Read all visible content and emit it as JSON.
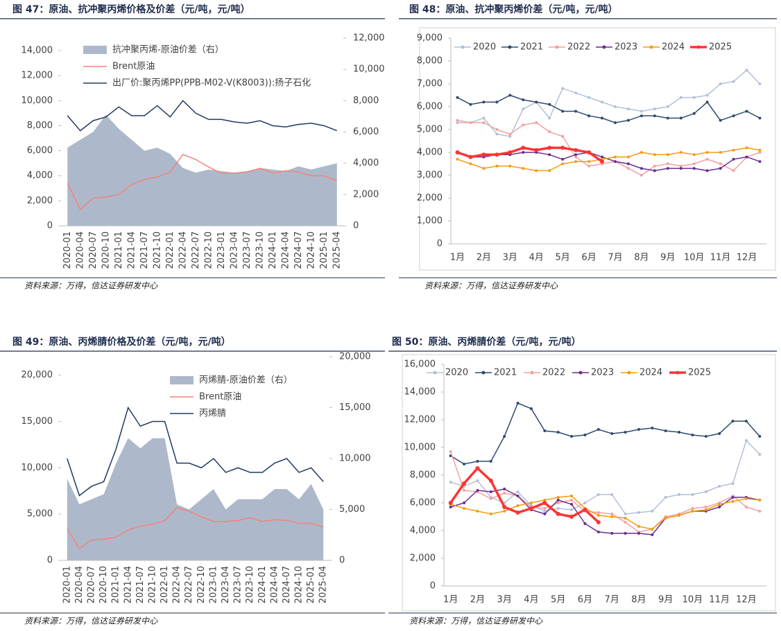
{
  "chart_data": [
    {
      "type": "line",
      "title": "图 47：原油、抗冲聚丙烯价格及价差（元/吨，元/吨）",
      "note": "资料来源：万得，信达证券研发中心",
      "categories": [
        "2020-01",
        "2020-04",
        "2020-07",
        "2020-10",
        "2021-01",
        "2021-04",
        "2021-07",
        "2021-10",
        "2022-01",
        "2022-04",
        "2022-07",
        "2022-10",
        "2023-01",
        "2023-04",
        "2023-07",
        "2023-10",
        "2024-01",
        "2024-04",
        "2024-07",
        "2024-10",
        "2025-01",
        "2025-04"
      ],
      "ylim": [
        0,
        15000
      ],
      "yticks": [
        0,
        {
          "value": 2000,
          "label": "2,000"
        },
        {
          "value": 4000,
          "label": "4,000"
        },
        {
          "value": 6000,
          "label": "6,000"
        },
        {
          "value": 8000,
          "label": "8,000"
        },
        {
          "value": 10000,
          "label": "10,000"
        },
        {
          "value": 12000,
          "label": "12,000"
        },
        {
          "value": 14000,
          "label": "14,000"
        }
      ],
      "y2lim": [
        0,
        12000
      ],
      "y2ticks": [
        0,
        {
          "value": 2000,
          "label": "2,000"
        },
        {
          "value": 4000,
          "label": "4,000"
        },
        {
          "value": 6000,
          "label": "6,000"
        },
        {
          "value": 8000,
          "label": "8,000"
        },
        {
          "value": 10000,
          "label": "10,000"
        },
        {
          "value": 12000,
          "label": "12,000"
        }
      ],
      "grid": false,
      "series": [
        {
          "name": "抗冲聚丙烯-原油价差（右）",
          "type": "area",
          "axis": "y2",
          "color": "#adb9ca",
          "values": [
            5000,
            5500,
            6000,
            7100,
            6200,
            5500,
            4800,
            5000,
            4600,
            3700,
            3400,
            3600,
            3500,
            3400,
            3500,
            3700,
            3600,
            3500,
            3800,
            3600,
            3800,
            4000
          ]
        },
        {
          "name": "Brent原油",
          "color": "#f4817b",
          "values": [
            3400,
            1300,
            2200,
            2300,
            2500,
            3300,
            3700,
            3900,
            4300,
            5700,
            5300,
            4700,
            4200,
            4200,
            4300,
            4600,
            4200,
            4400,
            4300,
            4000,
            4000,
            3600
          ]
        },
        {
          "name": "出厂价:聚丙烯PP(PPB-M02-V(K8003)):扬子石化",
          "color": "#1f3864",
          "values": [
            8800,
            7600,
            8400,
            8700,
            9500,
            8800,
            8800,
            9600,
            8700,
            10000,
            9000,
            8500,
            8500,
            8300,
            8200,
            8400,
            8000,
            7900,
            8100,
            8200,
            8000,
            7600
          ]
        }
      ]
    },
    {
      "type": "line",
      "title": "图 48：原油、抗冲聚丙烯价差（元/吨，元/吨）",
      "note": "资料来源：万得，信达证券研发中心",
      "categories": [
        "1月",
        null,
        "2月",
        null,
        "3月",
        null,
        "4月",
        null,
        "5月",
        null,
        "6月",
        null,
        "7月",
        null,
        "8月",
        null,
        "9月",
        null,
        "10月",
        null,
        "11月",
        null,
        "12月",
        null
      ],
      "ylim": [
        0,
        9000
      ],
      "yticks": [
        0,
        {
          "value": 1000,
          "label": "1,000"
        },
        {
          "value": 2000,
          "label": "2,000"
        },
        {
          "value": 3000,
          "label": "3,000"
        },
        {
          "value": 4000,
          "label": "4,000"
        },
        {
          "value": 5000,
          "label": "5,000"
        },
        {
          "value": 6000,
          "label": "6,000"
        },
        {
          "value": 7000,
          "label": "7,000"
        },
        {
          "value": 8000,
          "label": "8,000"
        },
        {
          "value": 9000,
          "label": "9,000"
        }
      ],
      "grid": false,
      "markers": true,
      "series": [
        {
          "name": "2020",
          "color": "#b4c0d4",
          "values": [
            5300,
            5300,
            5500,
            4800,
            4700,
            5900,
            6200,
            5500,
            6800,
            6600,
            6400,
            6200,
            6000,
            5900,
            5800,
            5900,
            6000,
            6400,
            6400,
            6500,
            7000,
            7100,
            7600,
            7000
          ]
        },
        {
          "name": "2021",
          "color": "#2e4a6e",
          "values": [
            6400,
            6100,
            6200,
            6200,
            6500,
            6300,
            6200,
            6100,
            5800,
            5800,
            5600,
            5500,
            5300,
            5400,
            5600,
            5600,
            5500,
            5500,
            5700,
            6200,
            5400,
            5600,
            5800,
            5500
          ]
        },
        {
          "name": "2022",
          "color": "#f4a0a0",
          "values": [
            5400,
            5300,
            5300,
            5000,
            4800,
            5200,
            5300,
            4900,
            4700,
            3800,
            3400,
            3500,
            3600,
            3300,
            3000,
            3400,
            3500,
            3400,
            3500,
            3700,
            3500,
            3200,
            3800,
            4000
          ]
        },
        {
          "name": "2023",
          "color": "#6a2c91",
          "values": [
            4000,
            3800,
            3800,
            3900,
            3900,
            4000,
            4000,
            3900,
            3700,
            3900,
            4000,
            3800,
            3600,
            3500,
            3300,
            3200,
            3300,
            3300,
            3300,
            3200,
            3300,
            3700,
            3800,
            3600
          ]
        },
        {
          "name": "2024",
          "color": "#f39c12",
          "values": [
            3700,
            3500,
            3300,
            3400,
            3400,
            3300,
            3200,
            3200,
            3500,
            3600,
            3600,
            3700,
            3800,
            3800,
            4000,
            3900,
            3900,
            4000,
            3900,
            4000,
            4000,
            4100,
            4200,
            4100
          ]
        },
        {
          "name": "2025",
          "color": "#ff3333",
          "values": [
            4000,
            3800,
            3900,
            3900,
            4000,
            4200,
            4100,
            4200,
            4200,
            4100,
            4000,
            3600,
            null,
            null,
            null,
            null,
            null,
            null,
            null,
            null,
            null,
            null,
            null,
            null
          ]
        }
      ]
    },
    {
      "type": "line",
      "title": "图 49：原油、丙烯腈价格及价差（元/吨，元/吨）",
      "note": "资料来源：万得，信达证券研发中心",
      "categories": [
        "2020-01",
        "2020-04",
        "2020-07",
        "2020-10",
        "2021-01",
        "2021-04",
        "2021-07",
        "2021-10",
        "2022-01",
        "2022-04",
        "2022-07",
        "2022-10",
        "2023-01",
        "2023-04",
        "2023-07",
        "2023-10",
        "2024-01",
        "2024-04",
        "2024-07",
        "2024-10",
        "2025-01",
        "2025-04"
      ],
      "ylim": [
        0,
        22000
      ],
      "yticks": [
        0,
        {
          "value": 5000,
          "label": "5,000"
        },
        {
          "value": 10000,
          "label": "10,000"
        },
        {
          "value": 15000,
          "label": "15,000"
        },
        {
          "value": 20000,
          "label": "20,000"
        }
      ],
      "y2lim": [
        0,
        20000
      ],
      "y2ticks": [
        0,
        {
          "value": 5000,
          "label": "5,000"
        },
        {
          "value": 10000,
          "label": "10,000"
        },
        {
          "value": 15000,
          "label": "15,000"
        },
        {
          "value": 20000,
          "label": "20,000"
        }
      ],
      "grid": false,
      "series": [
        {
          "name": "丙烯腈-原油价差（右）",
          "type": "area",
          "axis": "y2",
          "color": "#adb9ca",
          "values": [
            8000,
            5500,
            6000,
            6500,
            9500,
            12000,
            11000,
            12000,
            12000,
            5500,
            5000,
            6000,
            7000,
            5000,
            6000,
            6000,
            6000,
            7000,
            7000,
            6000,
            7500,
            5000
          ]
        },
        {
          "name": "Brent原油",
          "color": "#f4817b",
          "values": [
            3400,
            1300,
            2200,
            2300,
            2500,
            3300,
            3700,
            3900,
            4300,
            5700,
            5300,
            4700,
            4200,
            4200,
            4300,
            4600,
            4200,
            4400,
            4300,
            4000,
            4000,
            3600
          ]
        },
        {
          "name": "丙烯腈",
          "color": "#1f3864",
          "values": [
            11000,
            7000,
            8000,
            8500,
            12000,
            16500,
            14500,
            15000,
            15000,
            10500,
            10500,
            10000,
            11000,
            9500,
            10000,
            9500,
            9500,
            10500,
            11000,
            9500,
            10000,
            8500
          ]
        }
      ]
    },
    {
      "type": "line",
      "title": "图 50：原油、丙烯腈价差（元/吨，元/吨）",
      "note": "资料来源：万得，信达证券研发中心",
      "categories": [
        "1月",
        null,
        "2月",
        null,
        "3月",
        null,
        "4月",
        null,
        "5月",
        null,
        "6月",
        null,
        "7月",
        null,
        "8月",
        null,
        "9月",
        null,
        "10月",
        null,
        "11月",
        null,
        "12月",
        null
      ],
      "ylim": [
        0,
        16000
      ],
      "yticks": [
        0,
        {
          "value": 2000,
          "label": "2,000"
        },
        {
          "value": 4000,
          "label": "4,000"
        },
        {
          "value": 6000,
          "label": "6,000"
        },
        {
          "value": 8000,
          "label": "8,000"
        },
        {
          "value": 10000,
          "label": "10,000"
        },
        {
          "value": 12000,
          "label": "12,000"
        },
        {
          "value": 14000,
          "label": "14,000"
        },
        {
          "value": 16000,
          "label": "16,000"
        }
      ],
      "grid": false,
      "markers": true,
      "series": [
        {
          "name": "2020",
          "color": "#b4c0d4",
          "values": [
            7500,
            7200,
            7600,
            6400,
            6000,
            6800,
            5800,
            5400,
            5600,
            5500,
            6000,
            6600,
            6600,
            5200,
            5300,
            5400,
            6400,
            6600,
            6600,
            6800,
            7200,
            7400,
            10500,
            9500
          ]
        },
        {
          "name": "2021",
          "color": "#2e4a6e",
          "values": [
            9400,
            8800,
            9000,
            9000,
            10800,
            13200,
            12800,
            11200,
            11100,
            10800,
            10900,
            11300,
            11000,
            11100,
            11300,
            11400,
            11200,
            11100,
            10900,
            10800,
            11000,
            11900,
            11900,
            10800
          ]
        },
        {
          "name": "2022",
          "color": "#f4a0a0",
          "values": [
            9700,
            6900,
            6800,
            6300,
            6700,
            6500,
            5700,
            5600,
            6000,
            6200,
            5400,
            5300,
            5200,
            4600,
            3900,
            4100,
            5000,
            5200,
            5600,
            5700,
            6000,
            6500,
            5700,
            5400
          ]
        },
        {
          "name": "2023",
          "color": "#6a2c91",
          "values": [
            5700,
            6000,
            6900,
            6800,
            7000,
            6500,
            5500,
            5200,
            6200,
            5900,
            4500,
            3900,
            3800,
            3800,
            3800,
            3700,
            4900,
            5100,
            5400,
            5400,
            5700,
            6400,
            6400,
            6200
          ]
        },
        {
          "name": "2024",
          "color": "#f39c12",
          "values": [
            5900,
            5600,
            5400,
            5200,
            5400,
            5800,
            6000,
            6200,
            6400,
            6500,
            5600,
            5100,
            5000,
            4900,
            4300,
            4100,
            4900,
            5100,
            5400,
            5500,
            5900,
            6100,
            6300,
            6200
          ]
        },
        {
          "name": "2025",
          "color": "#ff3333",
          "values": [
            6000,
            7400,
            8500,
            7600,
            5700,
            5300,
            5600,
            6000,
            5200,
            5000,
            5500,
            4600,
            null,
            null,
            null,
            null,
            null,
            null,
            null,
            null,
            null,
            null,
            null,
            null
          ]
        }
      ]
    }
  ]
}
